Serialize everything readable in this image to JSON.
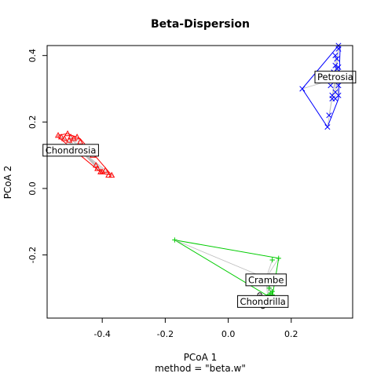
{
  "chart_data": {
    "type": "scatter",
    "title": "Beta-Dispersion",
    "xlabel": "PCoA 1",
    "ylabel": "PCoA 2",
    "sub": "method = \"beta.w\"",
    "xlim": [
      -0.575,
      0.395
    ],
    "ylim": [
      -0.39,
      0.43
    ],
    "x_ticks": [
      -0.4,
      -0.2,
      0.0,
      0.2
    ],
    "x_tick_labels": [
      "-0.4",
      "-0.2",
      "0.0",
      "0.2"
    ],
    "y_ticks": [
      -0.2,
      0.0,
      0.2,
      0.4
    ],
    "y_tick_labels": [
      "-0.2",
      "0.0",
      "0.2",
      "0.4"
    ],
    "groups": [
      {
        "name": "Chondrosia",
        "color": "#ff0000",
        "marker": "triangle",
        "centroid": [
          -0.47,
          0.115
        ],
        "label_pos": [
          -0.5,
          0.115
        ],
        "points": [
          [
            -0.54,
            0.16
          ],
          [
            -0.53,
            0.155
          ],
          [
            -0.52,
            0.15
          ],
          [
            -0.51,
            0.165
          ],
          [
            -0.505,
            0.145
          ],
          [
            -0.5,
            0.155
          ],
          [
            -0.49,
            0.15
          ],
          [
            -0.48,
            0.155
          ],
          [
            -0.47,
            0.14
          ],
          [
            -0.46,
            0.12
          ],
          [
            -0.44,
            0.11
          ],
          [
            -0.43,
            0.1
          ],
          [
            -0.42,
            0.07
          ],
          [
            -0.415,
            0.06
          ],
          [
            -0.405,
            0.05
          ],
          [
            -0.4,
            0.05
          ],
          [
            -0.38,
            0.04
          ],
          [
            -0.37,
            0.04
          ],
          [
            -0.39,
            0.055
          ],
          [
            -0.45,
            0.11
          ]
        ],
        "hull": [
          [
            -0.54,
            0.16
          ],
          [
            -0.51,
            0.165
          ],
          [
            -0.47,
            0.15
          ],
          [
            -0.37,
            0.04
          ],
          [
            -0.4,
            0.045
          ],
          [
            -0.54,
            0.155
          ]
        ]
      },
      {
        "name": "Petrosia",
        "color": "#0000ff",
        "marker": "x",
        "centroid": [
          0.34,
          0.33
        ],
        "label_pos": [
          0.34,
          0.335
        ],
        "points": [
          [
            0.35,
            0.43
          ],
          [
            0.35,
            0.42
          ],
          [
            0.34,
            0.4
          ],
          [
            0.345,
            0.39
          ],
          [
            0.34,
            0.37
          ],
          [
            0.35,
            0.365
          ],
          [
            0.345,
            0.36
          ],
          [
            0.335,
            0.35
          ],
          [
            0.34,
            0.34
          ],
          [
            0.33,
            0.33
          ],
          [
            0.325,
            0.31
          ],
          [
            0.35,
            0.31
          ],
          [
            0.34,
            0.29
          ],
          [
            0.33,
            0.28
          ],
          [
            0.35,
            0.28
          ],
          [
            0.33,
            0.27
          ],
          [
            0.34,
            0.27
          ],
          [
            0.32,
            0.22
          ],
          [
            0.235,
            0.3
          ],
          [
            0.315,
            0.185
          ]
        ],
        "hull": [
          [
            0.235,
            0.3
          ],
          [
            0.35,
            0.43
          ],
          [
            0.355,
            0.42
          ],
          [
            0.35,
            0.27
          ],
          [
            0.315,
            0.185
          ]
        ]
      },
      {
        "name": "Crambe",
        "color": "#00cc00",
        "marker": "plus",
        "centroid": [
          0.12,
          -0.27
        ],
        "label_pos": [
          0.12,
          -0.275
        ],
        "points": [
          [
            -0.17,
            -0.155
          ],
          [
            0.16,
            -0.21
          ],
          [
            0.14,
            -0.215
          ],
          [
            0.13,
            -0.3
          ],
          [
            0.14,
            -0.31
          ],
          [
            0.13,
            -0.32
          ],
          [
            0.135,
            -0.315
          ],
          [
            0.14,
            -0.32
          ],
          [
            0.125,
            -0.325
          ]
        ],
        "hull": [
          [
            -0.17,
            -0.155
          ],
          [
            0.16,
            -0.21
          ],
          [
            0.14,
            -0.325
          ],
          [
            0.12,
            -0.32
          ]
        ]
      },
      {
        "name": "Chondrilla",
        "color": "#000000",
        "marker": "circle",
        "centroid": [
          0.11,
          -0.34
        ],
        "label_pos": [
          0.11,
          -0.34
        ],
        "points": [
          [
            0.1,
            -0.32
          ],
          [
            0.11,
            -0.33
          ],
          [
            0.105,
            -0.34
          ],
          [
            0.115,
            -0.345
          ],
          [
            0.1,
            -0.35
          ],
          [
            0.11,
            -0.355
          ],
          [
            0.12,
            -0.35
          ],
          [
            0.125,
            -0.34
          ],
          [
            0.13,
            -0.335
          ]
        ],
        "hull": [
          [
            0.1,
            -0.32
          ],
          [
            0.13,
            -0.335
          ],
          [
            0.12,
            -0.355
          ],
          [
            0.1,
            -0.35
          ]
        ]
      }
    ]
  }
}
